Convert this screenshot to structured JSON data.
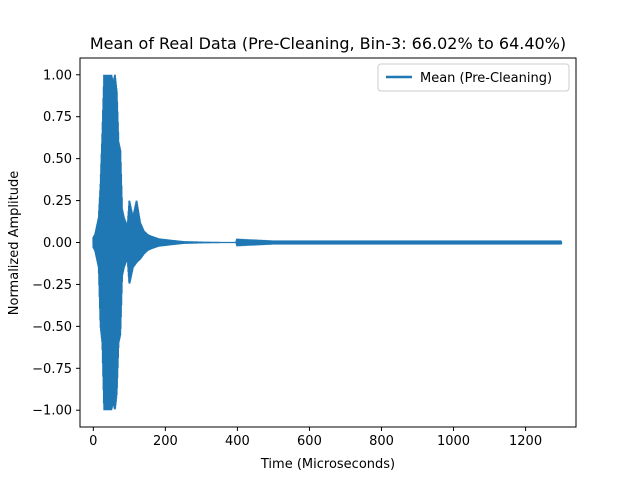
{
  "chart_data": {
    "type": "line",
    "title": "Mean of Real Data (Pre-Cleaning, Bin-3: 66.02% to 64.40%)",
    "xlabel": "Time (Microseconds)",
    "ylabel": "Normalized Amplitude",
    "xlim": [
      -37,
      1340
    ],
    "ylim": [
      -1.1,
      1.1
    ],
    "xticks": [
      0,
      200,
      400,
      600,
      800,
      1000,
      1200
    ],
    "yticks": [
      -1.0,
      -0.75,
      -0.5,
      -0.25,
      0.0,
      0.25,
      0.5,
      0.75,
      1.0
    ],
    "xtick_labels": [
      "0",
      "200",
      "400",
      "600",
      "800",
      "1000",
      "1200"
    ],
    "ytick_labels": [
      "−1.00",
      "−0.75",
      "−0.50",
      "−0.25",
      "0.00",
      "0.25",
      "0.50",
      "0.75",
      "1.00"
    ],
    "grid": false,
    "legend_position": "top-right",
    "color": "#1f77b4",
    "series": [
      {
        "name": "Mean (Pre-Cleaning)",
        "x_range": [
          0,
          1300
        ],
        "envelope": {
          "x": [
            0,
            5,
            10,
            15,
            20,
            25,
            30,
            35,
            40,
            45,
            50,
            55,
            60,
            65,
            70,
            75,
            80,
            85,
            90,
            95,
            100,
            110,
            120,
            130,
            140,
            150,
            160,
            180,
            200,
            220,
            250,
            300,
            350,
            400,
            500,
            700,
            1000,
            1300
          ],
          "upper": [
            0.03,
            0.05,
            0.1,
            0.15,
            0.35,
            0.65,
            1.0,
            1.0,
            1.0,
            1.0,
            1.0,
            0.95,
            1.0,
            0.9,
            0.6,
            0.55,
            0.2,
            0.15,
            0.12,
            0.1,
            0.25,
            0.15,
            0.25,
            0.12,
            0.07,
            0.05,
            0.04,
            0.025,
            0.02,
            0.015,
            0.008,
            0.005,
            0.003,
            0.002,
            0.001,
            0.001,
            0.001,
            0.001
          ],
          "lower": [
            -0.03,
            -0.05,
            -0.1,
            -0.15,
            -0.5,
            -0.6,
            -1.0,
            -1.0,
            -1.0,
            -1.0,
            -1.0,
            -0.95,
            -1.0,
            -0.9,
            -0.6,
            -0.55,
            -0.2,
            -0.15,
            -0.12,
            -0.1,
            -0.25,
            -0.15,
            -0.12,
            -0.1,
            -0.07,
            -0.05,
            -0.04,
            -0.025,
            -0.02,
            -0.015,
            -0.008,
            -0.005,
            -0.003,
            -0.002,
            -0.001,
            -0.001,
            -0.001,
            -0.001
          ]
        }
      }
    ]
  }
}
